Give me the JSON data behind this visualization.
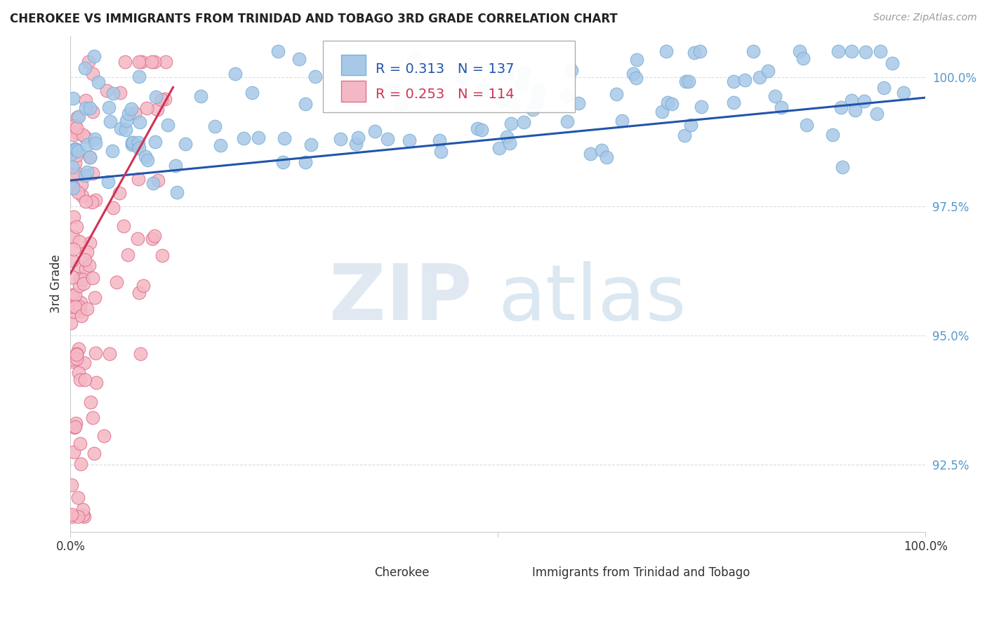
{
  "title": "CHEROKEE VS IMMIGRANTS FROM TRINIDAD AND TOBAGO 3RD GRADE CORRELATION CHART",
  "source": "Source: ZipAtlas.com",
  "ylabel": "3rd Grade",
  "ytick_values": [
    92.5,
    95.0,
    97.5,
    100.0
  ],
  "xmin": 0.0,
  "xmax": 100.0,
  "ymin": 91.2,
  "ymax": 100.8,
  "blue_R": 0.313,
  "blue_N": 137,
  "pink_R": 0.253,
  "pink_N": 114,
  "blue_color": "#a8c8e8",
  "blue_edge": "#7bafd4",
  "pink_color": "#f4b8c4",
  "pink_edge": "#e07090",
  "trend_blue": "#2255aa",
  "trend_pink": "#cc3355",
  "legend_blue_label": "Cherokee",
  "legend_pink_label": "Immigrants from Trinidad and Tobago",
  "background_color": "#ffffff",
  "grid_color": "#dddddd",
  "ytick_color": "#5599cc",
  "title_color": "#222222",
  "source_color": "#999999"
}
